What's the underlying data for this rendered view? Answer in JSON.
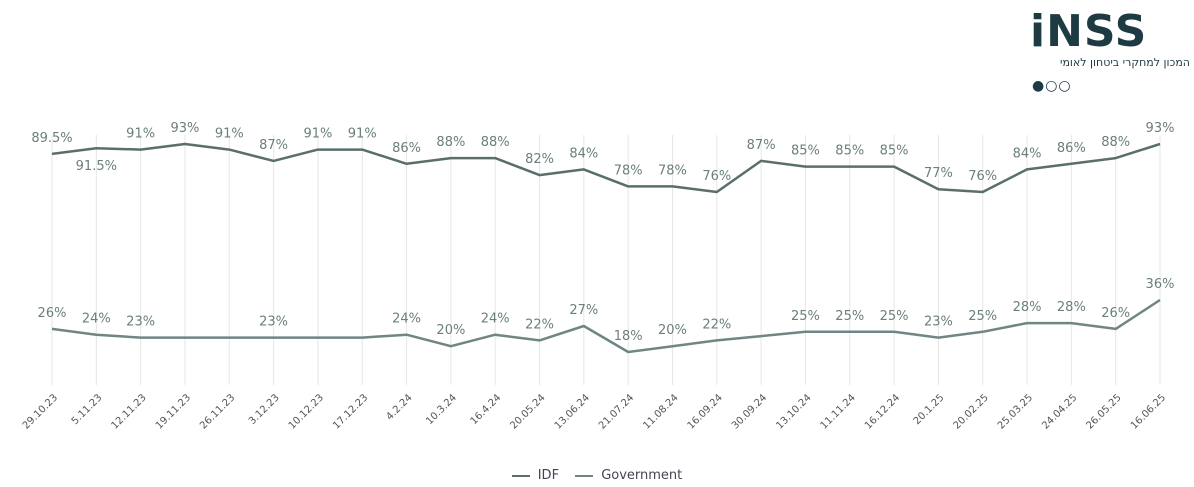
{
  "logo": {
    "name": "iNSS",
    "subtitle": "המכון למחקרי ביטחון לאומי",
    "dots": "●○○"
  },
  "chart_data": {
    "type": "line",
    "title": "",
    "xlabel": "",
    "ylabel": "",
    "ylim": [
      0,
      100
    ],
    "grid": "vertical",
    "legend": "bottom-center",
    "categories": [
      "29.10.23",
      "5.11.23",
      "12.11.23",
      "19.11.23",
      "26.11.23",
      "3.12.23",
      "10.12.23",
      "17.12.23",
      "4.2.24",
      "10.3.24",
      "16.4.24",
      "20.05.24",
      "13.06.24",
      "21.07.24",
      "11.08.24",
      "16.09.24",
      "30.09.24",
      "13.10.24",
      "11.11.24",
      "16.12.24",
      "20.1.25",
      "20.02.25",
      "25.03.25",
      "24.04.25",
      "26.05.25",
      "16.06.25"
    ],
    "series": [
      {
        "name": "IDF",
        "color": "#5a6f6d",
        "values": [
          89.5,
          91.5,
          91,
          93,
          91,
          87,
          91,
          91,
          86,
          88,
          88,
          82,
          84,
          78,
          78,
          76,
          87,
          85,
          85,
          85,
          77,
          76,
          84,
          86,
          88,
          93
        ],
        "labels": [
          "89.5%",
          "91.5%",
          "91%",
          "93%",
          "91%",
          "87%",
          "91%",
          "91%",
          "86%",
          "88%",
          "88%",
          "82%",
          "84%",
          "78%",
          "78%",
          "76%",
          "87%",
          "85%",
          "85%",
          "85%",
          "77%",
          "76%",
          "84%",
          "86%",
          "88%",
          "93%"
        ]
      },
      {
        "name": "Government",
        "color": "#6f8685",
        "values": [
          26,
          24,
          23,
          23,
          23,
          23,
          23,
          23,
          24,
          20,
          24,
          22,
          27,
          18,
          20,
          22,
          23.5,
          25,
          25,
          25,
          23,
          25,
          28,
          28,
          26,
          36
        ],
        "labels": [
          "26%",
          "24%",
          "23%",
          "",
          "",
          "23%",
          "",
          "",
          "24%",
          "20%",
          "24%",
          "22%",
          "27%",
          "18%",
          "20%",
          "22%",
          "",
          "25%",
          "25%",
          "25%",
          "23%",
          "25%",
          "28%",
          "28%",
          "26%",
          "36%"
        ]
      }
    ],
    "legend_entries": [
      "IDF",
      "Government"
    ]
  }
}
